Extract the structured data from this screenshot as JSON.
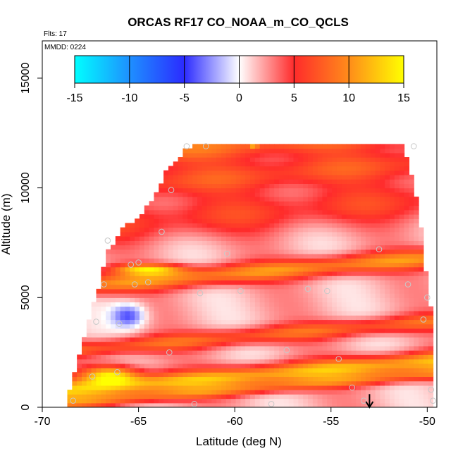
{
  "chart_data": {
    "type": "heatmap",
    "title": "ORCAS RF17 CO_NOAA_m_CO_QCLS",
    "flights_note": "Flts: 17",
    "date_note": "MMDD: 0224",
    "xlabel": "Latitude (deg N)",
    "ylabel": "Altitude (m)",
    "xlim": [
      -70,
      -49.5
    ],
    "ylim": [
      0,
      16700
    ],
    "x_ticks": [
      -70,
      -65,
      -60,
      -55,
      -50
    ],
    "y_ticks": [
      0,
      5000,
      10000,
      15000
    ],
    "colorbar": {
      "ticks": [
        -15,
        -10,
        -5,
        0,
        5,
        10,
        15
      ],
      "range": [
        -15,
        15
      ],
      "colors": [
        "#00ffff",
        "#1e90ff",
        "#2b2bff",
        "#ffffff",
        "#ff2b2b",
        "#ff8c1a",
        "#ffff00"
      ]
    },
    "profile": {
      "lat": [
        -68.7,
        -68.2,
        -67.5,
        -67.0,
        -66.6,
        -65.9,
        -65.0,
        -64.2,
        -63.5,
        -62.6,
        -62.0,
        -61.0,
        -60.0,
        -59.0,
        -58.0,
        -57.0,
        -56.0,
        -55.0,
        -54.0,
        -53.0,
        -52.0,
        -51.3,
        -50.8,
        -50.4,
        -50.1,
        -49.9,
        -49.8
      ],
      "top_alt": [
        400,
        2000,
        4200,
        5600,
        7000,
        8000,
        8600,
        9500,
        10800,
        11600,
        12000,
        12000,
        12000,
        12000,
        12000,
        12000,
        12000,
        12000,
        12000,
        12000,
        12000,
        11800,
        10500,
        8600,
        6300,
        5200,
        4200
      ]
    },
    "layers": [
      {
        "alt": 12000,
        "width": 700,
        "value": 6.5
      },
      {
        "alt": 10500,
        "width": 700,
        "value": 5.0
      },
      {
        "alt": 8800,
        "width": 900,
        "value": 4.0
      },
      {
        "alt": 6100,
        "width": 450,
        "value": 8.0
      },
      {
        "alt": 3200,
        "width": 400,
        "value": 6.0
      },
      {
        "alt": 1400,
        "width": 450,
        "value": 10.0
      },
      {
        "alt": 800,
        "width": 300,
        "value": 6.0
      }
    ],
    "features": [
      {
        "lat": -65.5,
        "alt": 4200,
        "value": -6,
        "rx": 0.9,
        "ry": 550
      },
      {
        "lat": -66.5,
        "alt": 1500,
        "value": 11.5,
        "rx": 1.5,
        "ry": 450
      },
      {
        "lat": -64.5,
        "alt": 6300,
        "value": 10,
        "rx": 1.8,
        "ry": 250
      },
      {
        "lat": -59.0,
        "alt": 12100,
        "value": 12,
        "rx": 0.2,
        "ry": 200
      }
    ],
    "observations": {
      "lat": [
        -68.4,
        -67.4,
        -66.8,
        -66.0,
        -65.4,
        -65.0,
        -63.8,
        -63.3,
        -62.1,
        -61.5,
        -60.4,
        -59.7,
        -58.1,
        -57.3,
        -56.2,
        -55.2,
        -54.6,
        -53.9,
        -53.3,
        -52.5,
        -51.0,
        -50.7,
        -50.2,
        -50.0,
        -49.8,
        -49.7,
        -66.6,
        -65.2,
        -63.4,
        -62.5,
        -61.8,
        -64.5,
        -66.1,
        -67.2
      ],
      "alt": [
        300,
        1400,
        5600,
        3800,
        6500,
        6600,
        8000,
        9900,
        150,
        11900,
        7000,
        5300,
        150,
        2600,
        5400,
        5300,
        2200,
        900,
        300,
        7200,
        5600,
        11900,
        4000,
        5000,
        800,
        300,
        7600,
        5600,
        2500,
        11900,
        5200,
        5700,
        1600,
        3900
      ]
    },
    "marker": {
      "lat": -53.0,
      "alt_from": 600,
      "alt_to": 0
    }
  }
}
